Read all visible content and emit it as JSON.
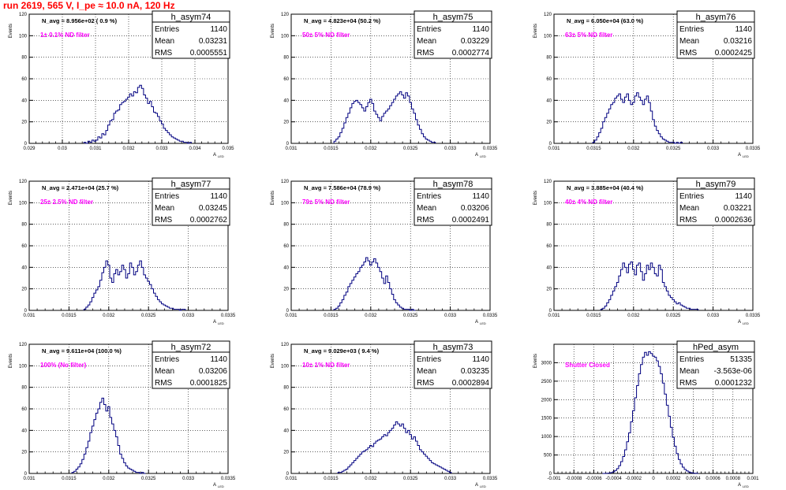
{
  "page_title": "run 2619,   565 V, I_pe ≈ 10.0 nA, 120 Hz",
  "stat_labels": {
    "entries": "Entries",
    "mean": "Mean",
    "rms": "RMS"
  },
  "y_axis_title": "Events",
  "x_axis_title": "A",
  "x_axis_subscript": "LED",
  "colors": {
    "histogram": "#000080",
    "annotation": "#ff00ff",
    "title": "#ff0000",
    "grid": "#000000"
  },
  "chart_data": [
    {
      "type": "bar",
      "name": "h_asym74",
      "n_avg": "N_avg = 8.956e+02 ( 0.9 %)",
      "filter": "1± 0.1% ND filter",
      "entries": "1140",
      "mean": "0.03231",
      "rms": "0.0005551",
      "xlim": [
        0.029,
        0.035
      ],
      "ylim": [
        0,
        120
      ],
      "x_ticks": [
        "0.029",
        "0.03",
        "0.031",
        "0.032",
        "0.033",
        "0.034",
        "0.035"
      ],
      "y_ticks": [
        "0",
        "20",
        "40",
        "60",
        "80",
        "100",
        "120"
      ],
      "bin_width": 6e-05,
      "x": [
        0.03068,
        0.03074,
        0.0308,
        0.03086,
        0.03092,
        0.03098,
        0.03104,
        0.0311,
        0.03116,
        0.03122,
        0.03128,
        0.03134,
        0.0314,
        0.03146,
        0.03152,
        0.03158,
        0.03164,
        0.0317,
        0.03176,
        0.03182,
        0.03188,
        0.03194,
        0.032,
        0.03206,
        0.03212,
        0.03218,
        0.03224,
        0.0323,
        0.03236,
        0.03242,
        0.03248,
        0.03254,
        0.0326,
        0.03266,
        0.03272,
        0.03278,
        0.03284,
        0.0329,
        0.03296,
        0.03302,
        0.03308,
        0.03314,
        0.0332,
        0.03326,
        0.03332,
        0.03338,
        0.03344,
        0.0335,
        0.03356,
        0.03362,
        0.03368,
        0.03374,
        0.0338,
        0.03386
      ],
      "values": [
        1,
        0,
        2,
        1,
        3,
        2,
        3,
        6,
        5,
        9,
        8,
        12,
        17,
        21,
        22,
        28,
        30,
        31,
        36,
        38,
        39,
        41,
        43,
        46,
        44,
        48,
        47,
        52,
        54,
        51,
        45,
        42,
        37,
        39,
        34,
        29,
        28,
        25,
        21,
        18,
        14,
        12,
        10,
        8,
        6,
        5,
        4,
        3,
        2,
        2,
        1,
        1,
        0,
        1
      ]
    },
    {
      "type": "bar",
      "name": "h_asym75",
      "n_avg": "N_avg = 4.823e+04 (50.2 %)",
      "filter": "50± 5% ND filter",
      "entries": "1140",
      "mean": "0.03229",
      "rms": "0.0002774",
      "xlim": [
        0.031,
        0.0335
      ],
      "ylim": [
        0,
        120
      ],
      "x_ticks": [
        "0.031",
        "0.0315",
        "0.032",
        "0.0325",
        "0.033",
        "0.0335"
      ],
      "y_ticks": [
        "0",
        "20",
        "40",
        "60",
        "80",
        "100",
        "120"
      ],
      "bin_width": 2.5e-05,
      "x": [
        0.03155,
        0.031575,
        0.0316,
        0.031625,
        0.03165,
        0.031675,
        0.0317,
        0.031725,
        0.03175,
        0.031775,
        0.0318,
        0.031825,
        0.03185,
        0.031875,
        0.0319,
        0.031925,
        0.03195,
        0.031975,
        0.032,
        0.032025,
        0.03205,
        0.032075,
        0.0321,
        0.032125,
        0.03215,
        0.032175,
        0.0322,
        0.032225,
        0.03225,
        0.032275,
        0.0323,
        0.032325,
        0.03235,
        0.032375,
        0.0324,
        0.032425,
        0.03245,
        0.032475,
        0.0325,
        0.032525,
        0.03255,
        0.032575,
        0.0326,
        0.032625,
        0.03265,
        0.032675,
        0.0327,
        0.032725,
        0.03275,
        0.032775,
        0.0328
      ],
      "values": [
        2,
        4,
        6,
        10,
        14,
        19,
        24,
        28,
        33,
        37,
        39,
        40,
        38,
        36,
        33,
        30,
        34,
        38,
        41,
        37,
        30,
        27,
        24,
        21,
        25,
        28,
        30,
        32,
        35,
        38,
        41,
        44,
        46,
        48,
        45,
        42,
        47,
        44,
        38,
        32,
        28,
        22,
        17,
        13,
        9,
        6,
        4,
        3,
        2,
        1,
        1
      ]
    },
    {
      "type": "bar",
      "name": "h_asym76",
      "n_avg": "N_avg = 6.050e+04 (63.0 %)",
      "filter": "63± 5% ND filter",
      "entries": "1140",
      "mean": "0.03216",
      "rms": "0.0002425",
      "xlim": [
        0.031,
        0.0335
      ],
      "ylim": [
        0,
        120
      ],
      "x_ticks": [
        "0.031",
        "0.0315",
        "0.032",
        "0.0325",
        "0.033",
        "0.0335"
      ],
      "y_ticks": [
        "0",
        "20",
        "40",
        "60",
        "80",
        "100",
        "120"
      ],
      "bin_width": 2.5e-05,
      "x": [
        0.0315,
        0.031525,
        0.03155,
        0.031575,
        0.0316,
        0.031625,
        0.03165,
        0.031675,
        0.0317,
        0.031725,
        0.03175,
        0.031775,
        0.0318,
        0.031825,
        0.03185,
        0.031875,
        0.0319,
        0.031925,
        0.03195,
        0.031975,
        0.032,
        0.032025,
        0.03205,
        0.032075,
        0.0321,
        0.032125,
        0.03215,
        0.032175,
        0.0322,
        0.032225,
        0.03225,
        0.032275,
        0.0323,
        0.032325,
        0.03235,
        0.032375,
        0.0324,
        0.032425,
        0.03245,
        0.032475,
        0.0325,
        0.032525,
        0.03255,
        0.032575,
        0.0326
      ],
      "values": [
        1,
        3,
        6,
        10,
        14,
        20,
        24,
        28,
        32,
        36,
        38,
        42,
        44,
        46,
        41,
        38,
        43,
        46,
        40,
        36,
        38,
        44,
        47,
        43,
        40,
        36,
        41,
        44,
        38,
        30,
        22,
        16,
        12,
        9,
        6,
        4,
        3,
        2,
        1,
        1,
        1,
        0,
        1,
        0,
        1
      ]
    },
    {
      "type": "bar",
      "name": "h_asym77",
      "n_avg": "N_avg = 2.471e+04 (25.7 %)",
      "filter": "25± 2.5% ND filter",
      "entries": "1140",
      "mean": "0.03245",
      "rms": "0.0002762",
      "xlim": [
        0.031,
        0.0335
      ],
      "ylim": [
        0,
        120
      ],
      "x_ticks": [
        "0.031",
        "0.0315",
        "0.032",
        "0.0325",
        "0.033",
        "0.0335"
      ],
      "y_ticks": [
        "0",
        "20",
        "40",
        "60",
        "80",
        "100",
        "120"
      ],
      "bin_width": 2.5e-05,
      "x": [
        0.0317,
        0.031725,
        0.03175,
        0.031775,
        0.0318,
        0.031825,
        0.03185,
        0.031875,
        0.0319,
        0.031925,
        0.03195,
        0.031975,
        0.032,
        0.032025,
        0.03205,
        0.032075,
        0.0321,
        0.032125,
        0.03215,
        0.032175,
        0.0322,
        0.032225,
        0.03225,
        0.032275,
        0.0323,
        0.032325,
        0.03235,
        0.032375,
        0.0324,
        0.032425,
        0.03245,
        0.032475,
        0.0325,
        0.032525,
        0.03255,
        0.032575,
        0.0326,
        0.032625,
        0.03265,
        0.032675,
        0.0327,
        0.032725,
        0.03275,
        0.032775,
        0.0328,
        0.032825,
        0.03285,
        0.032875,
        0.0329,
        0.032925,
        0.03295
      ],
      "values": [
        1,
        3,
        5,
        8,
        12,
        16,
        19,
        22,
        28,
        35,
        40,
        46,
        42,
        30,
        26,
        34,
        38,
        33,
        36,
        42,
        38,
        30,
        34,
        44,
        40,
        33,
        36,
        42,
        46,
        40,
        33,
        30,
        27,
        24,
        20,
        16,
        13,
        10,
        8,
        6,
        5,
        4,
        3,
        2,
        2,
        1,
        1,
        1,
        0,
        1,
        1
      ]
    },
    {
      "type": "bar",
      "name": "h_asym78",
      "n_avg": "N_avg = 7.586e+04 (78.9 %)",
      "filter": "79± 5% ND filter",
      "entries": "1140",
      "mean": "0.03206",
      "rms": "0.0002491",
      "xlim": [
        0.031,
        0.0335
      ],
      "ylim": [
        0,
        120
      ],
      "x_ticks": [
        "0.031",
        "0.0315",
        "0.032",
        "0.0325",
        "0.033",
        "0.0335"
      ],
      "y_ticks": [
        "0",
        "20",
        "40",
        "60",
        "80",
        "100",
        "120"
      ],
      "bin_width": 2.5e-05,
      "x": [
        0.03155,
        0.031575,
        0.0316,
        0.031625,
        0.03165,
        0.031675,
        0.0317,
        0.031725,
        0.03175,
        0.031775,
        0.0318,
        0.031825,
        0.03185,
        0.031875,
        0.0319,
        0.031925,
        0.03195,
        0.031975,
        0.032,
        0.032025,
        0.03205,
        0.032075,
        0.0321,
        0.032125,
        0.03215,
        0.032175,
        0.0322,
        0.032225,
        0.03225,
        0.032275,
        0.0323,
        0.032325,
        0.03235,
        0.032375,
        0.0324,
        0.032425,
        0.03245,
        0.032475,
        0.0325,
        0.032525,
        0.03255
      ],
      "values": [
        1,
        2,
        4,
        7,
        10,
        14,
        17,
        22,
        25,
        28,
        31,
        34,
        36,
        40,
        42,
        45,
        49,
        46,
        42,
        45,
        48,
        44,
        40,
        36,
        30,
        25,
        32,
        26,
        20,
        15,
        10,
        7,
        5,
        3,
        2,
        1,
        1,
        1,
        0,
        1,
        0
      ]
    },
    {
      "type": "bar",
      "name": "h_asym79",
      "n_avg": "N_avg = 3.885e+04 (40.4 %)",
      "filter": "40± 4% ND filter",
      "entries": "1140",
      "mean": "0.03221",
      "rms": "0.0002636",
      "xlim": [
        0.031,
        0.0335
      ],
      "ylim": [
        0,
        120
      ],
      "x_ticks": [
        "0.031",
        "0.0315",
        "0.032",
        "0.0325",
        "0.033",
        "0.0335"
      ],
      "y_ticks": [
        "0",
        "20",
        "40",
        "60",
        "80",
        "100",
        "120"
      ],
      "bin_width": 2.5e-05,
      "x": [
        0.0316,
        0.031625,
        0.03165,
        0.031675,
        0.0317,
        0.031725,
        0.03175,
        0.031775,
        0.0318,
        0.031825,
        0.03185,
        0.031875,
        0.0319,
        0.031925,
        0.03195,
        0.031975,
        0.032,
        0.032025,
        0.03205,
        0.032075,
        0.0321,
        0.032125,
        0.03215,
        0.032175,
        0.0322,
        0.032225,
        0.03225,
        0.032275,
        0.0323,
        0.032325,
        0.03235,
        0.032375,
        0.0324,
        0.032425,
        0.03245,
        0.032475,
        0.0325,
        0.032525,
        0.03255,
        0.032575,
        0.0326,
        0.032625,
        0.03265,
        0.032675,
        0.0327,
        0.032725,
        0.03275,
        0.032775,
        0.0328
      ],
      "values": [
        1,
        2,
        4,
        7,
        10,
        14,
        18,
        22,
        26,
        32,
        38,
        44,
        40,
        35,
        43,
        45,
        38,
        33,
        42,
        44,
        36,
        28,
        34,
        42,
        38,
        44,
        40,
        34,
        32,
        42,
        38,
        26,
        22,
        18,
        14,
        12,
        10,
        8,
        6,
        7,
        5,
        4,
        3,
        2,
        2,
        1,
        1,
        1,
        1
      ]
    },
    {
      "type": "bar",
      "name": "h_asym72",
      "n_avg": "N_avg = 9.611e+04 (100.0 %)",
      "filter": "100% (No filter)",
      "entries": "1140",
      "mean": "0.03206",
      "rms": "0.0001825",
      "xlim": [
        0.031,
        0.0335
      ],
      "ylim": [
        0,
        120
      ],
      "x_ticks": [
        "0.031",
        "0.0315",
        "0.032",
        "0.0325",
        "0.033",
        "0.0335"
      ],
      "y_ticks": [
        "0",
        "20",
        "40",
        "60",
        "80",
        "100",
        "120"
      ],
      "bin_width": 2.5e-05,
      "x": [
        0.03155,
        0.031575,
        0.0316,
        0.031625,
        0.03165,
        0.031675,
        0.0317,
        0.031725,
        0.03175,
        0.031775,
        0.0318,
        0.031825,
        0.03185,
        0.031875,
        0.0319,
        0.031925,
        0.03195,
        0.031975,
        0.032,
        0.032025,
        0.03205,
        0.032075,
        0.0321,
        0.032125,
        0.03215,
        0.032175,
        0.0322,
        0.032225,
        0.03225,
        0.032275,
        0.0323,
        0.032325,
        0.03235,
        0.032375,
        0.0324,
        0.032425,
        0.03245
      ],
      "values": [
        1,
        2,
        4,
        6,
        9,
        13,
        18,
        24,
        30,
        38,
        44,
        50,
        56,
        60,
        66,
        70,
        64,
        58,
        62,
        52,
        46,
        40,
        34,
        26,
        18,
        14,
        10,
        7,
        5,
        4,
        3,
        2,
        1,
        1,
        0,
        1,
        0
      ]
    },
    {
      "type": "bar",
      "name": "h_asym73",
      "n_avg": "N_avg = 9.029e+03 ( 9.4 %)",
      "filter": "10± 1% ND filter",
      "entries": "1140",
      "mean": "0.03235",
      "rms": "0.0002894",
      "xlim": [
        0.031,
        0.0335
      ],
      "ylim": [
        0,
        120
      ],
      "x_ticks": [
        "0.031",
        "0.0315",
        "0.032",
        "0.0325",
        "0.033",
        "0.0335"
      ],
      "y_ticks": [
        "0",
        "20",
        "40",
        "60",
        "80",
        "100",
        "120"
      ],
      "bin_width": 2.5e-05,
      "x": [
        0.0316,
        0.031625,
        0.03165,
        0.031675,
        0.0317,
        0.031725,
        0.03175,
        0.031775,
        0.0318,
        0.031825,
        0.03185,
        0.031875,
        0.0319,
        0.031925,
        0.03195,
        0.031975,
        0.032,
        0.032025,
        0.03205,
        0.032075,
        0.0321,
        0.032125,
        0.03215,
        0.032175,
        0.0322,
        0.032225,
        0.03225,
        0.032275,
        0.0323,
        0.032325,
        0.03235,
        0.032375,
        0.0324,
        0.032425,
        0.03245,
        0.032475,
        0.0325,
        0.032525,
        0.03255,
        0.032575,
        0.0326,
        0.032625,
        0.03265,
        0.032675,
        0.0327,
        0.032725,
        0.03275,
        0.032775,
        0.0328,
        0.032825,
        0.03285,
        0.032875,
        0.0329,
        0.032925,
        0.03295,
        0.032975,
        0.033
      ],
      "values": [
        1,
        1,
        2,
        3,
        4,
        6,
        8,
        10,
        12,
        14,
        16,
        18,
        20,
        21,
        22,
        24,
        26,
        25,
        28,
        30,
        31,
        32,
        34,
        36,
        35,
        38,
        40,
        42,
        45,
        48,
        46,
        44,
        46,
        42,
        38,
        40,
        36,
        32,
        34,
        30,
        26,
        22,
        20,
        18,
        16,
        14,
        12,
        10,
        9,
        8,
        7,
        6,
        5,
        4,
        3,
        2,
        1
      ]
    },
    {
      "type": "bar",
      "name": "hPed_asym",
      "n_avg": "",
      "filter": "Shutter Closed",
      "entries": "51335",
      "mean": "-3.563e-06",
      "rms": "0.0001232",
      "xlim": [
        -0.001,
        0.001
      ],
      "ylim": [
        0,
        3500
      ],
      "x_ticks": [
        "-0.001",
        "-0.0008",
        "-0.0006",
        "-0.0004",
        "-0.0002",
        "0",
        "0.0002",
        "0.0004",
        "0.0006",
        "0.0008",
        "0.001"
      ],
      "y_ticks": [
        "0",
        "500",
        "1000",
        "1500",
        "2000",
        "2500",
        "3000"
      ],
      "bin_width": 2e-05,
      "x": [
        -0.0005,
        -0.00048,
        -0.00046,
        -0.00044,
        -0.00042,
        -0.0004,
        -0.00038,
        -0.00036,
        -0.00034,
        -0.00032,
        -0.0003,
        -0.00028,
        -0.00026,
        -0.00024,
        -0.00022,
        -0.0002,
        -0.00018,
        -0.00016,
        -0.00014,
        -0.00012,
        -0.0001,
        -8e-05,
        -6e-05,
        -4e-05,
        -2e-05,
        0,
        2e-05,
        4e-05,
        6e-05,
        8e-05,
        0.0001,
        0.00012,
        0.00014,
        0.00016,
        0.00018,
        0.0002,
        0.00022,
        0.00024,
        0.00026,
        0.00028,
        0.0003,
        0.00032,
        0.00034,
        0.00036,
        0.00038,
        0.0004,
        0.00042,
        0.00044
      ],
      "values": [
        1,
        3,
        6,
        12,
        24,
        45,
        80,
        130,
        210,
        320,
        460,
        640,
        860,
        1100,
        1400,
        1700,
        2050,
        2380,
        2700,
        2950,
        3150,
        3280,
        3200,
        3300,
        3250,
        3180,
        3150,
        3050,
        2900,
        2700,
        2450,
        2150,
        1850,
        1550,
        1250,
        980,
        740,
        540,
        380,
        260,
        170,
        110,
        70,
        40,
        22,
        12,
        6,
        2
      ]
    }
  ]
}
